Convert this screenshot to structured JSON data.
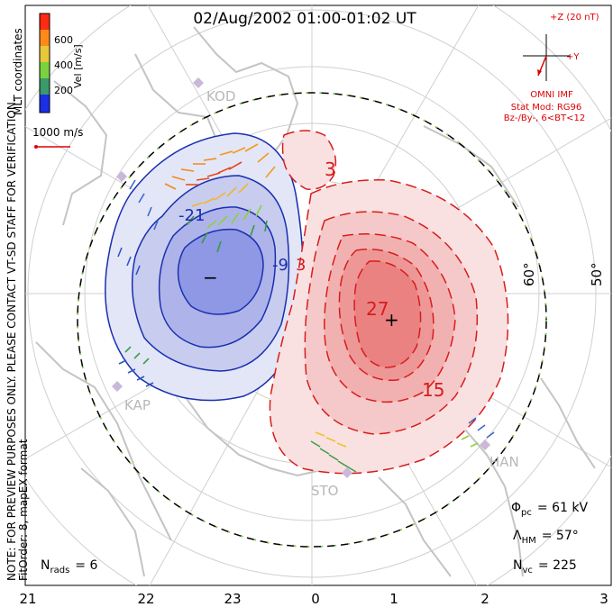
{
  "title": "02/Aug/2002 01:00-01:02 UT",
  "side_note": "NOTE: FOR PREVIEW PURPOSES ONLY. PLEASE CONTACT VT-SD STAFF FOR VERIFICATION.",
  "fit_order": "FitOrder: 8, mapEX format",
  "coords": "MLT coordinates",
  "colorbar": {
    "label": "Vel [m/s]",
    "ticks": [
      "600",
      "400",
      "200"
    ]
  },
  "scale_vector": {
    "label": "1000 m/s"
  },
  "imf": {
    "z_label": "+Z (20 nT)",
    "y_label": "+Y",
    "source": "OMNI IMF",
    "model": "Stat Mod: RG96",
    "condition": "Bz-/By-, 6<BT<12",
    "color": "#e00000"
  },
  "lat_labels": [
    "60°",
    "50°"
  ],
  "contour_labels": {
    "neg21": "-21",
    "neg9": "-9",
    "pos3a": "3",
    "pos3b": "3",
    "pos27": "27",
    "pos15": "15"
  },
  "markers": {
    "minus": "−",
    "plus": "+"
  },
  "sites": [
    "KOD",
    "KAP",
    "STO",
    "HAN"
  ],
  "stats": {
    "phi_sym": "Φ",
    "phi_sub": "pc",
    "phi_val": "= 61 kV",
    "lam_sym": "Λ",
    "lam_sub": "HM",
    "lam_val": "= 57°",
    "nvc_sym": "N",
    "nvc_sub": "vc",
    "nvc_val": "= 225",
    "nrads_sym": "N",
    "nrads_sub": "rads",
    "nrads_val": "= 6"
  },
  "mlt_ticks": [
    "21",
    "22",
    "23",
    "0",
    "1",
    "2",
    "3"
  ],
  "colors": {
    "negative": "#1a2fb0",
    "positive": "#d81c1c"
  }
}
